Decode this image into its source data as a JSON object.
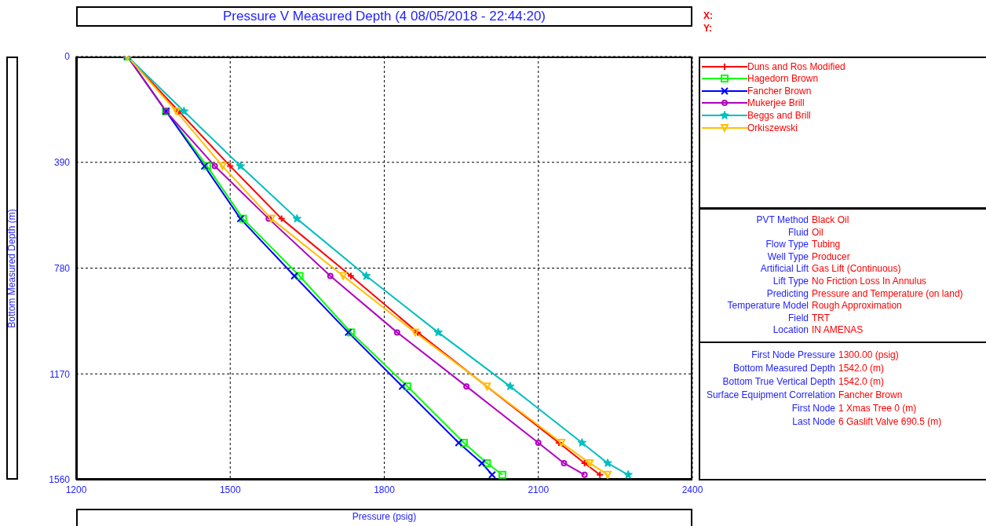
{
  "chart_data": [
    {
      "type": "line",
      "title": "Pressure V Measured Depth (4 08/05/2018 - 22:44:20)",
      "xlabel": "Pressure (psig)",
      "ylabel": "Bottom Measured Depth (m)",
      "xlim": [
        1200,
        2400
      ],
      "xticks": [
        1200,
        1500,
        1800,
        2100,
        2400
      ],
      "ylim": [
        1560,
        0
      ],
      "yticks": [
        0,
        390,
        780,
        1170,
        1560
      ],
      "grid": true,
      "legend": "right",
      "line_style": "solid",
      "annotations": [
        "X:",
        "Y:"
      ],
      "series": [
        {
          "name": "Duns and Ros Modified",
          "color": "#ff0000",
          "marker": "cross",
          "x": [
            1300,
            1400,
            1500,
            1600,
            1735,
            1865,
            2140,
            2190,
            2220
          ],
          "values": [
            0,
            202,
            404,
            598,
            809,
            1017,
            1424,
            1499,
            1542
          ]
        },
        {
          "name": "Hagedorn Brown",
          "color": "#00ff00",
          "marker": "square",
          "x": [
            1300,
            1375,
            1455,
            1525,
            1635,
            1735,
            1845,
            1955,
            2000,
            2030
          ],
          "values": [
            0,
            202,
            404,
            598,
            809,
            1017,
            1216,
            1424,
            1499,
            1542
          ]
        },
        {
          "name": "Fancher Brown",
          "color": "#0000ff",
          "marker": "x",
          "x": [
            1300,
            1375,
            1450,
            1520,
            1625,
            1730,
            1835,
            1945,
            1990,
            2010
          ],
          "values": [
            0,
            202,
            404,
            598,
            809,
            1017,
            1216,
            1424,
            1499,
            1542
          ]
        },
        {
          "name": "Mukerjee Brill",
          "color": "#b000c0",
          "marker": "circle",
          "x": [
            1300,
            1375,
            1470,
            1575,
            1695,
            1825,
            1960,
            2100,
            2150,
            2190
          ],
          "values": [
            0,
            202,
            404,
            598,
            809,
            1017,
            1216,
            1424,
            1499,
            1542
          ]
        },
        {
          "name": "Beggs and Brill",
          "color": "#00bfbf",
          "marker": "star",
          "x": [
            1300,
            1410,
            1520,
            1630,
            1765,
            1905,
            2045,
            2185,
            2235,
            2275
          ],
          "values": [
            0,
            202,
            404,
            598,
            809,
            1017,
            1216,
            1424,
            1499,
            1542
          ]
        },
        {
          "name": "Orkiszewski",
          "color": "#ffc000",
          "marker": "triangle",
          "x": [
            1300,
            1395,
            1485,
            1580,
            1720,
            1860,
            2000,
            2145,
            2200,
            2235
          ],
          "values": [
            0,
            202,
            404,
            598,
            809,
            1017,
            1216,
            1424,
            1499,
            1542
          ]
        }
      ]
    },
    {
      "type": "other",
      "annotations": [
        "PVT Method",
        "Black Oil",
        "Fluid",
        "Oil",
        "Flow Type",
        "Tubing",
        "Well Type",
        "Producer",
        "Artificial Lift",
        "Gas Lift (Continuous)",
        "Lift Type",
        "No Friction Loss In Annulus",
        "Predicting",
        "Pressure and Temperature (on land)",
        "Temperature Model",
        "Rough Approximation",
        "Field",
        "TRT",
        "Location",
        "IN AMENAS"
      ]
    },
    {
      "type": "other",
      "annotations": [
        "First Node Pressure",
        "1300.00 (psig)",
        "Bottom Measured Depth",
        "1542.0 (m)",
        "Bottom True Vertical Depth",
        "1542.0 (m)",
        "Surface Equipment Correlation",
        "Fancher Brown",
        "First Node",
        "1 Xmas Tree 0 (m)",
        "Last Node",
        "6 Gaslift Valve 690.5 (m)"
      ]
    }
  ]
}
